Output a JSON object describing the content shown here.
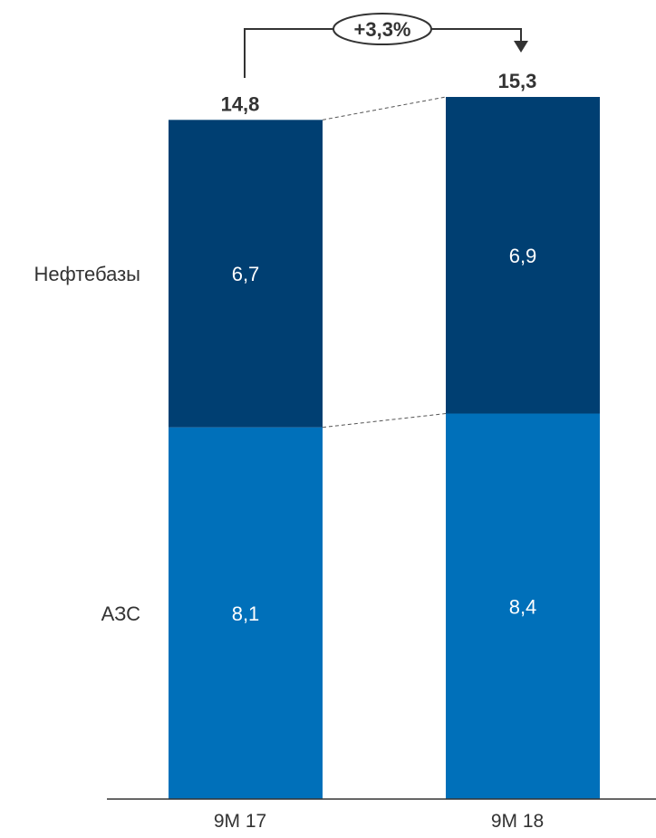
{
  "chart_data": {
    "type": "bar",
    "stacked": true,
    "categories": [
      "9M 17",
      "9M 18"
    ],
    "series": [
      {
        "name": "АЗС",
        "values": [
          8.1,
          8.4
        ],
        "value_labels": [
          "8,1",
          "8,4"
        ],
        "color": "#0070BA"
      },
      {
        "name": "Нефтебазы",
        "values": [
          6.7,
          6.9
        ],
        "value_labels": [
          "6,7",
          "6,9"
        ],
        "color": "#003F72"
      }
    ],
    "totals": [
      14.8,
      15.3
    ],
    "total_labels": [
      "14,8",
      "15,3"
    ],
    "growth_label": "+3,3%",
    "ylim": [
      0,
      15.3
    ],
    "grid": false,
    "legend": "left-side labels"
  }
}
